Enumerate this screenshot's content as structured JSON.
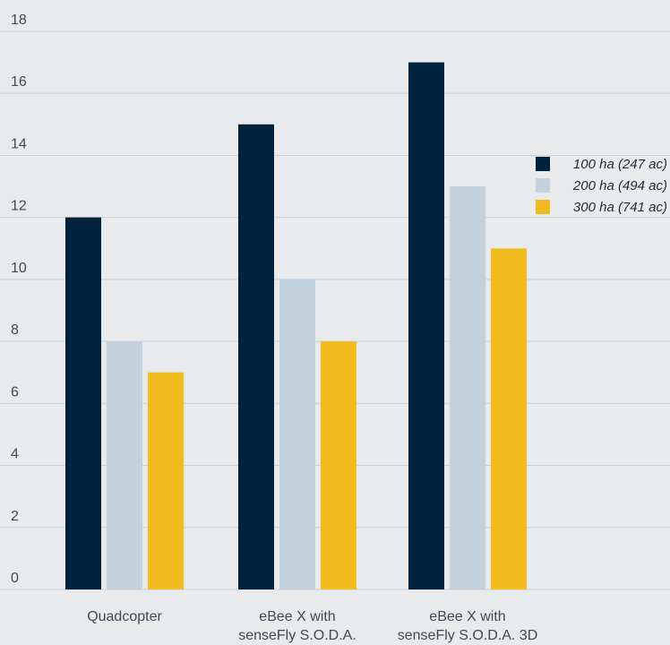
{
  "chart_data": {
    "type": "bar",
    "categories": [
      [
        "Quadcopter"
      ],
      [
        "eBee X with",
        "senseFly S.O.D.A."
      ],
      [
        "eBee X with",
        "senseFly S.O.D.A. 3D"
      ]
    ],
    "series": [
      {
        "name": "100 ha (247 ac)",
        "color": "#00233d",
        "values": [
          12,
          15,
          17
        ]
      },
      {
        "name": "200 ha (494 ac)",
        "color": "#c3d1dd",
        "values": [
          8,
          10,
          13
        ]
      },
      {
        "name": "300 ha (741 ac)",
        "color": "#f2bb1d",
        "values": [
          7,
          8,
          11
        ]
      }
    ],
    "yticks": [
      0,
      2,
      4,
      6,
      8,
      10,
      12,
      14,
      16,
      18
    ],
    "ylim": [
      0,
      18
    ],
    "grid": true,
    "legend_position": "right",
    "title": "",
    "xlabel": "",
    "ylabel": ""
  }
}
